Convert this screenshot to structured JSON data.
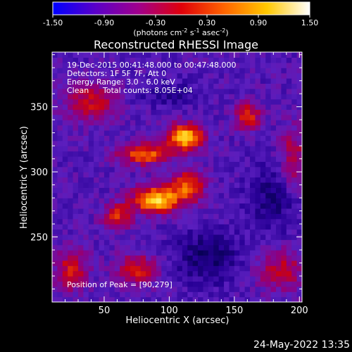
{
  "colorbar": {
    "ticks": [
      "-1.50",
      "-0.90",
      "-0.30",
      "0.30",
      "0.90",
      "1.50"
    ],
    "tick_values": [
      -1.5,
      -0.9,
      -0.3,
      0.3,
      0.9,
      1.5
    ],
    "unit_main": "(photons cm",
    "unit_exp1": "-2",
    "unit_mid": " s",
    "unit_exp2": "-1",
    "unit_tail": " asec",
    "unit_exp3": "-2",
    "unit_close": ")",
    "colors": [
      "#0000ff",
      "#5a00c8",
      "#a0008c",
      "#e0000a",
      "#ff6400",
      "#ffc800",
      "#ffffff"
    ]
  },
  "chart_data": {
    "type": "heatmap",
    "title": "Reconstructed RHESSI Image",
    "xlabel": "Heliocentric X (arcsec)",
    "ylabel": "Heliocentric Y (arcsec)",
    "xlim": [
      10,
      202
    ],
    "ylim": [
      200,
      392
    ],
    "xticks": [
      50,
      100,
      150,
      200
    ],
    "xtick_labels": [
      "50",
      "100",
      "150",
      "200"
    ],
    "yticks": [
      250,
      300,
      350
    ],
    "ytick_labels": [
      "250",
      "300",
      "350"
    ],
    "peak_position": [
      90,
      279
    ],
    "value_range": [
      -1.5,
      1.5
    ]
  },
  "annotations": {
    "time_range": "19-Dec-2015 00:41:48.000 to 00:47:48.000",
    "detectors": "Detectors: 1F 5F 7F, Att 0",
    "energy": "Energy Range: 3.0 - 6.0 keV",
    "method": "Clean",
    "counts": "Total counts: 8.05E+04",
    "peak": "Position of Peak = [90,279]"
  },
  "footer": {
    "timestamp": "24-May-2022 13:35"
  }
}
